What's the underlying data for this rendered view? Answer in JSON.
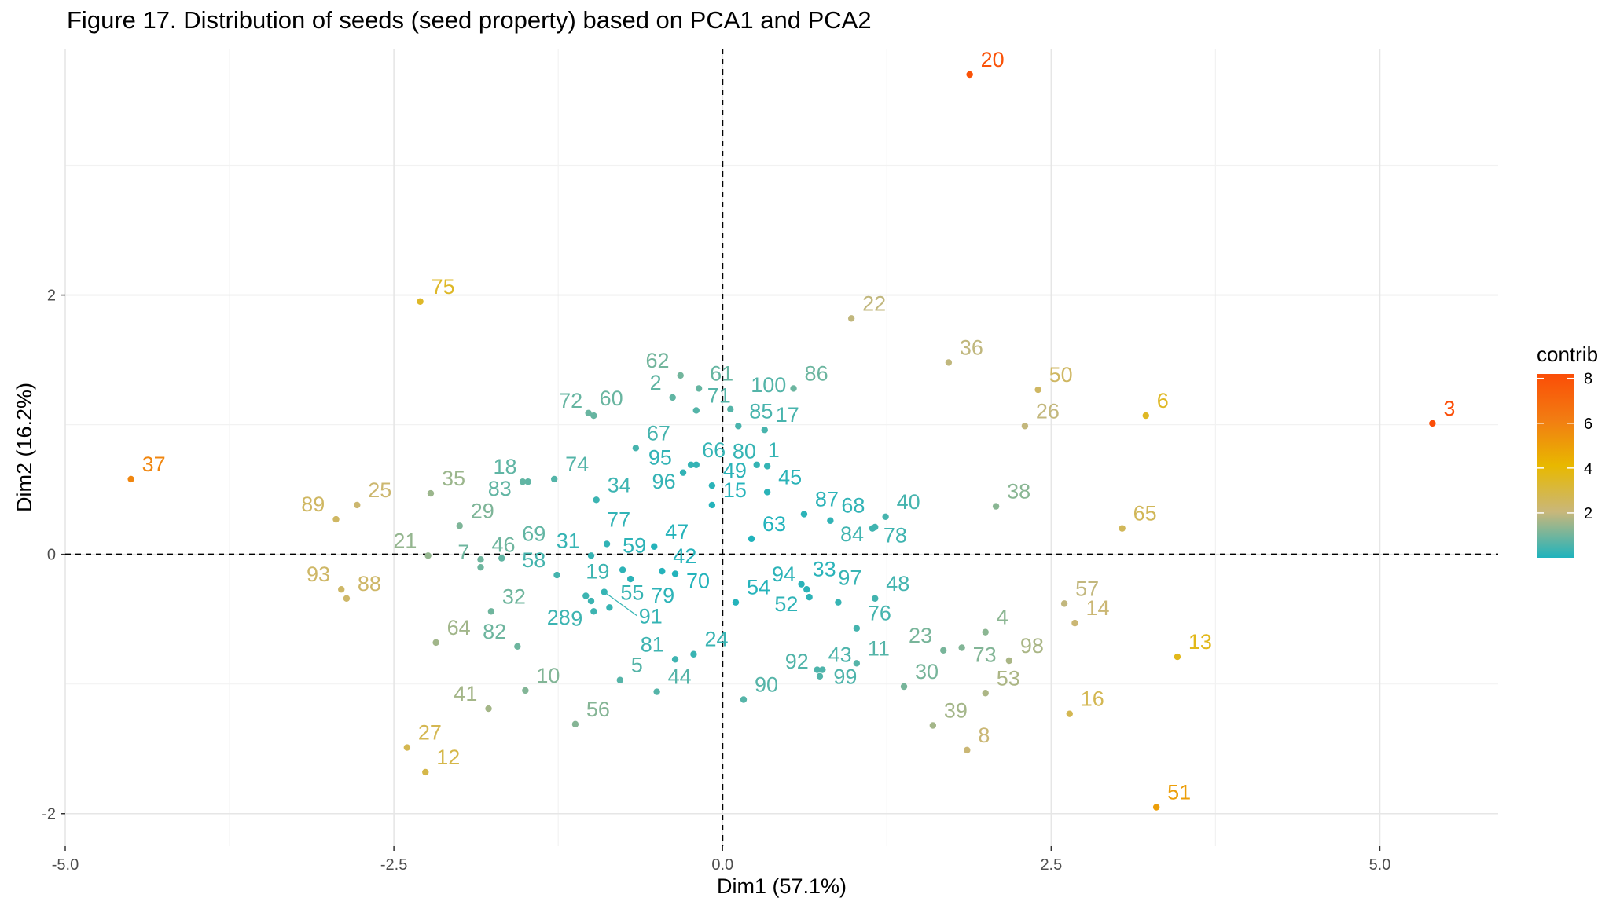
{
  "chart_data": {
    "type": "scatter",
    "title": "Figure 17. Distribution of seeds (seed property) based on PCA1 and PCA2",
    "xlabel": "Dim1 (57.1%)",
    "ylabel": "Dim2 (16.2%)",
    "xlim": [
      -5.0,
      5.9
    ],
    "ylim": [
      -2.25,
      3.9
    ],
    "x_ticks": [
      -5.0,
      -2.5,
      0.0,
      2.5,
      5.0
    ],
    "x_tick_labels": [
      "-5.0",
      "-2.5",
      "0.0",
      "2.5",
      "5.0"
    ],
    "y_ticks": [
      -2,
      0,
      2
    ],
    "y_tick_labels": [
      "-2",
      "0",
      "2"
    ],
    "grid": true,
    "reference_lines": {
      "x": 0,
      "y": 0,
      "style": "dashed"
    },
    "color_scale": {
      "title": "contrib",
      "min": 0,
      "max": 8.2,
      "ticks": [
        2,
        4,
        6,
        8
      ],
      "tick_labels": [
        "2",
        "4",
        "6",
        "8"
      ],
      "colors": [
        "#1fb3bd",
        "#c9b77a",
        "#e8b800",
        "#f27d12",
        "#fb4d07"
      ],
      "legend_position": "right"
    },
    "points": [
      {
        "id": "1",
        "x": 0.26,
        "y": 0.69
      },
      {
        "id": "2",
        "x": -0.38,
        "y": 1.21
      },
      {
        "id": "3",
        "x": 5.4,
        "y": 1.01
      },
      {
        "id": "4",
        "x": 2.0,
        "y": -0.6
      },
      {
        "id": "5",
        "x": -0.78,
        "y": -0.97
      },
      {
        "id": "6",
        "x": 3.22,
        "y": 1.07
      },
      {
        "id": "7",
        "x": -1.84,
        "y": -0.1
      },
      {
        "id": "8",
        "x": 1.86,
        "y": -1.51
      },
      {
        "id": "9",
        "x": -0.98,
        "y": -0.44
      },
      {
        "id": "10",
        "x": -1.5,
        "y": -1.05
      },
      {
        "id": "11",
        "x": 1.02,
        "y": -0.84
      },
      {
        "id": "12",
        "x": -2.26,
        "y": -1.68
      },
      {
        "id": "13",
        "x": 3.46,
        "y": -0.79
      },
      {
        "id": "14",
        "x": 2.68,
        "y": -0.53
      },
      {
        "id": "15",
        "x": -0.08,
        "y": 0.38
      },
      {
        "id": "16",
        "x": 2.64,
        "y": -1.23
      },
      {
        "id": "17",
        "x": 0.32,
        "y": 0.96
      },
      {
        "id": "18",
        "x": -1.48,
        "y": 0.56
      },
      {
        "id": "19",
        "x": -1.04,
        "y": -0.32
      },
      {
        "id": "20",
        "x": 1.88,
        "y": 3.7
      },
      {
        "id": "21",
        "x": -2.24,
        "y": -0.01
      },
      {
        "id": "22",
        "x": 0.98,
        "y": 1.82
      },
      {
        "id": "23",
        "x": 1.68,
        "y": -0.74
      },
      {
        "id": "24",
        "x": -0.22,
        "y": -0.77
      },
      {
        "id": "25",
        "x": -2.78,
        "y": 0.38
      },
      {
        "id": "26",
        "x": 2.3,
        "y": 0.99
      },
      {
        "id": "27",
        "x": -2.4,
        "y": -1.49
      },
      {
        "id": "28",
        "x": -1.0,
        "y": -0.36
      },
      {
        "id": "29",
        "x": -2.0,
        "y": 0.22
      },
      {
        "id": "30",
        "x": 1.38,
        "y": -1.02
      },
      {
        "id": "31",
        "x": -1.0,
        "y": -0.01
      },
      {
        "id": "32",
        "x": -1.76,
        "y": -0.44
      },
      {
        "id": "33",
        "x": 0.6,
        "y": -0.23
      },
      {
        "id": "34",
        "x": -0.96,
        "y": 0.42
      },
      {
        "id": "35",
        "x": -2.22,
        "y": 0.47
      },
      {
        "id": "36",
        "x": 1.72,
        "y": 1.48
      },
      {
        "id": "37",
        "x": -4.5,
        "y": 0.58
      },
      {
        "id": "38",
        "x": 2.08,
        "y": 0.37
      },
      {
        "id": "39",
        "x": 1.6,
        "y": -1.32
      },
      {
        "id": "40",
        "x": 1.24,
        "y": 0.29
      },
      {
        "id": "41",
        "x": -1.78,
        "y": -1.19
      },
      {
        "id": "42",
        "x": -0.46,
        "y": -0.13
      },
      {
        "id": "43",
        "x": 0.72,
        "y": -0.89
      },
      {
        "id": "44",
        "x": -0.5,
        "y": -1.06
      },
      {
        "id": "45",
        "x": 0.34,
        "y": 0.48
      },
      {
        "id": "46",
        "x": -1.84,
        "y": -0.04
      },
      {
        "id": "47",
        "x": -0.52,
        "y": 0.06
      },
      {
        "id": "48",
        "x": 1.16,
        "y": -0.34
      },
      {
        "id": "49",
        "x": -0.08,
        "y": 0.53
      },
      {
        "id": "50",
        "x": 2.4,
        "y": 1.27
      },
      {
        "id": "51",
        "x": 3.3,
        "y": -1.95
      },
      {
        "id": "52",
        "x": 0.66,
        "y": -0.33
      },
      {
        "id": "53",
        "x": 2.0,
        "y": -1.07
      },
      {
        "id": "54",
        "x": 0.1,
        "y": -0.37
      },
      {
        "id": "55",
        "x": -0.86,
        "y": -0.41
      },
      {
        "id": "56",
        "x": -1.12,
        "y": -1.31
      },
      {
        "id": "57",
        "x": 2.6,
        "y": -0.38
      },
      {
        "id": "58",
        "x": -1.26,
        "y": -0.16
      },
      {
        "id": "59",
        "x": -0.76,
        "y": -0.12
      },
      {
        "id": "60",
        "x": -1.02,
        "y": 1.09
      },
      {
        "id": "61",
        "x": -0.18,
        "y": 1.28
      },
      {
        "id": "62",
        "x": -0.32,
        "y": 1.38
      },
      {
        "id": "63",
        "x": 0.22,
        "y": 0.12
      },
      {
        "id": "64",
        "x": -2.18,
        "y": -0.68
      },
      {
        "id": "65",
        "x": 3.04,
        "y": 0.2
      },
      {
        "id": "66",
        "x": -0.24,
        "y": 0.69
      },
      {
        "id": "67",
        "x": -0.66,
        "y": 0.82
      },
      {
        "id": "68",
        "x": 0.82,
        "y": 0.26
      },
      {
        "id": "69",
        "x": -1.68,
        "y": -0.03
      },
      {
        "id": "70",
        "x": -0.36,
        "y": -0.15
      },
      {
        "id": "71",
        "x": -0.2,
        "y": 1.11
      },
      {
        "id": "72",
        "x": -0.98,
        "y": 1.07
      },
      {
        "id": "73",
        "x": 1.82,
        "y": -0.72
      },
      {
        "id": "74",
        "x": -1.28,
        "y": 0.58
      },
      {
        "id": "75",
        "x": -2.3,
        "y": 1.95
      },
      {
        "id": "76",
        "x": 1.02,
        "y": -0.57
      },
      {
        "id": "77",
        "x": -0.88,
        "y": 0.08
      },
      {
        "id": "78",
        "x": 1.14,
        "y": 0.2
      },
      {
        "id": "79",
        "x": -0.7,
        "y": -0.19
      },
      {
        "id": "80",
        "x": 0.34,
        "y": 0.68
      },
      {
        "id": "81",
        "x": -0.36,
        "y": -0.81
      },
      {
        "id": "82",
        "x": -1.56,
        "y": -0.71
      },
      {
        "id": "83",
        "x": -1.52,
        "y": 0.56
      },
      {
        "id": "84",
        "x": 1.16,
        "y": 0.21
      },
      {
        "id": "85",
        "x": 0.12,
        "y": 0.99
      },
      {
        "id": "86",
        "x": 0.54,
        "y": 1.28
      },
      {
        "id": "87",
        "x": 0.62,
        "y": 0.31
      },
      {
        "id": "88",
        "x": -2.86,
        "y": -0.34
      },
      {
        "id": "89",
        "x": -2.94,
        "y": 0.27
      },
      {
        "id": "90",
        "x": 0.16,
        "y": -1.12
      },
      {
        "id": "91",
        "x": -0.9,
        "y": -0.29
      },
      {
        "id": "92",
        "x": 0.74,
        "y": -0.94
      },
      {
        "id": "93",
        "x": -2.9,
        "y": -0.27
      },
      {
        "id": "94",
        "x": 0.64,
        "y": -0.27
      },
      {
        "id": "95",
        "x": -0.3,
        "y": 0.63
      },
      {
        "id": "96",
        "x": -0.2,
        "y": 0.69
      },
      {
        "id": "97",
        "x": 0.88,
        "y": -0.37
      },
      {
        "id": "98",
        "x": 2.18,
        "y": -0.82
      },
      {
        "id": "99",
        "x": 0.76,
        "y": -0.89
      },
      {
        "id": "100",
        "x": 0.06,
        "y": 1.12
      }
    ]
  }
}
